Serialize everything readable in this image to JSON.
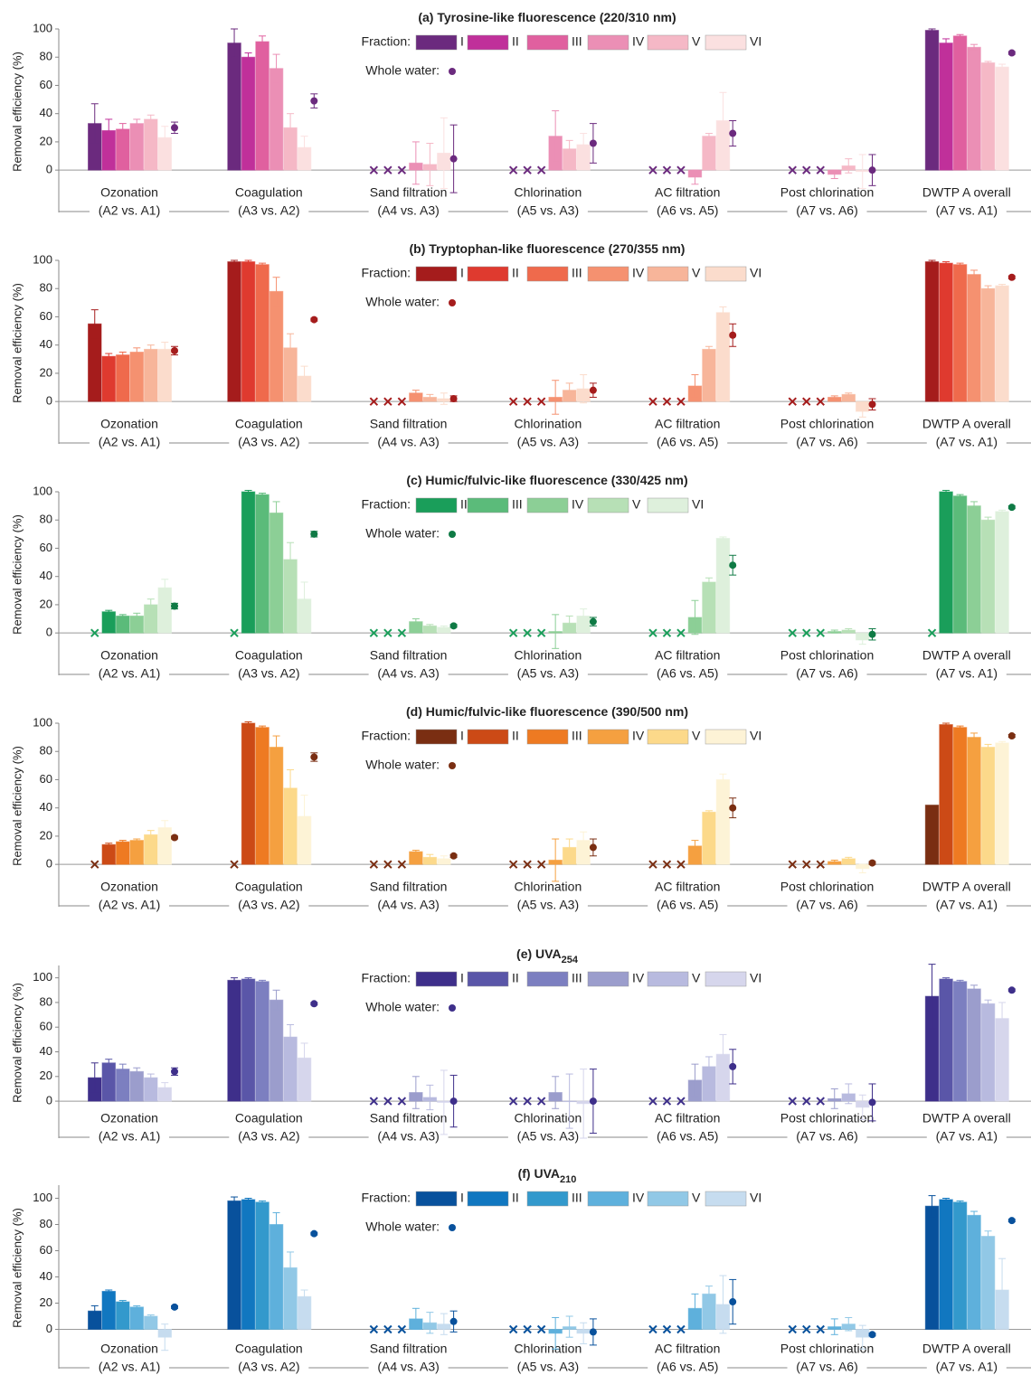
{
  "chart_data": [
    {
      "type": "bar",
      "title": "(a) Tyrosine-like fluorescence (220/310 nm)",
      "y_label": "Removal efficiency (%)",
      "categories": [
        "Ozonation",
        "Coagulation",
        "Sand filtration",
        "Chlorination",
        "AC filtration",
        "Post chlorination",
        "DWTP A overall"
      ],
      "comparisons": [
        "(A2 vs. A1)",
        "(A3 vs. A2)",
        "(A4 vs. A3)",
        "(A5 vs. A3)",
        "(A6 vs. A5)",
        "(A7 vs. A6)",
        "(A7 vs. A1)"
      ],
      "ylim": [
        -30,
        100
      ],
      "yticks": [
        0,
        20,
        40,
        60,
        80,
        100
      ],
      "legend_title": "Fraction:",
      "series": [
        {
          "name": "I",
          "color": "#6b2a7e",
          "values": [
            33,
            90,
            null,
            null,
            null,
            null,
            99
          ],
          "errors": [
            14,
            10,
            null,
            null,
            null,
            null,
            1
          ]
        },
        {
          "name": "II",
          "color": "#c0309a",
          "values": [
            28,
            80,
            null,
            null,
            null,
            null,
            90
          ],
          "errors": [
            8,
            3,
            null,
            null,
            null,
            null,
            3
          ]
        },
        {
          "name": "III",
          "color": "#e0609f",
          "values": [
            29,
            91,
            null,
            null,
            null,
            null,
            95
          ],
          "errors": [
            4,
            4,
            null,
            null,
            null,
            null,
            1
          ]
        },
        {
          "name": "IV",
          "color": "#eb8fb5",
          "values": [
            33,
            72,
            5,
            24,
            -5,
            -3,
            87
          ],
          "errors": [
            3,
            10,
            15,
            18,
            5,
            3,
            2
          ]
        },
        {
          "name": "V",
          "color": "#f5b8c6",
          "values": [
            36,
            30,
            4,
            15,
            24,
            3,
            76
          ],
          "errors": [
            3,
            10,
            15,
            6,
            2,
            5,
            1
          ]
        },
        {
          "name": "VI",
          "color": "#fbe0e0",
          "values": [
            23,
            16,
            12,
            18,
            35,
            -1,
            73
          ],
          "errors": [
            8,
            8,
            25,
            8,
            20,
            12,
            2
          ]
        }
      ],
      "whole_water": {
        "name": "Whole water:",
        "color": "#6b2a7e",
        "values": [
          30,
          49,
          8,
          19,
          26,
          0,
          83
        ],
        "errors": [
          4,
          5,
          24,
          14,
          9,
          11,
          1
        ]
      }
    },
    {
      "type": "bar",
      "title": "(b) Tryptophan-like fluorescence (270/355 nm)",
      "y_label": "Removal efficiency (%)",
      "categories": [
        "Ozonation",
        "Coagulation",
        "Sand filtration",
        "Chlorination",
        "AC filtration",
        "Post chlorination",
        "DWTP A overall"
      ],
      "comparisons": [
        "(A2 vs. A1)",
        "(A3 vs. A2)",
        "(A4 vs. A3)",
        "(A5 vs. A3)",
        "(A6 vs. A5)",
        "(A7 vs. A6)",
        "(A7 vs. A1)"
      ],
      "ylim": [
        -30,
        100
      ],
      "yticks": [
        0,
        20,
        40,
        60,
        80,
        100
      ],
      "legend_title": "Fraction:",
      "series": [
        {
          "name": "I",
          "color": "#a51c1c",
          "values": [
            55,
            99,
            null,
            null,
            null,
            null,
            99
          ],
          "errors": [
            10,
            1,
            null,
            null,
            null,
            null,
            1
          ]
        },
        {
          "name": "II",
          "color": "#df3a2f",
          "values": [
            32,
            99,
            null,
            null,
            null,
            null,
            98
          ],
          "errors": [
            2,
            1,
            null,
            null,
            null,
            null,
            1
          ]
        },
        {
          "name": "III",
          "color": "#ef6a4c",
          "values": [
            33,
            97,
            null,
            null,
            null,
            null,
            97
          ],
          "errors": [
            2,
            1,
            null,
            null,
            null,
            null,
            1
          ]
        },
        {
          "name": "IV",
          "color": "#f59170",
          "values": [
            35,
            78,
            6,
            3,
            11,
            3,
            90
          ],
          "errors": [
            3,
            10,
            2,
            12,
            8,
            1,
            3
          ]
        },
        {
          "name": "V",
          "color": "#f7b59a",
          "values": [
            37,
            38,
            3,
            8,
            37,
            5,
            80
          ],
          "errors": [
            3,
            10,
            2,
            5,
            2,
            1,
            2
          ]
        },
        {
          "name": "VI",
          "color": "#fbdccc",
          "values": [
            37,
            18,
            2,
            9,
            63,
            -7,
            82
          ],
          "errors": [
            5,
            7,
            4,
            10,
            4,
            4,
            1
          ]
        }
      ],
      "whole_water": {
        "name": "Whole water:",
        "color": "#a51c1c",
        "values": [
          36,
          58,
          2,
          8,
          47,
          -2,
          88
        ],
        "errors": [
          3,
          1,
          2,
          5,
          8,
          4,
          1
        ]
      }
    },
    {
      "type": "bar",
      "title": "(c) Humic/fulvic-like fluorescence (330/425 nm)",
      "y_label": "Removal efficiency (%)",
      "categories": [
        "Ozonation",
        "Coagulation",
        "Sand filtration",
        "Chlorination",
        "AC filtration",
        "Post chlorination",
        "DWTP A overall"
      ],
      "comparisons": [
        "(A2 vs. A1)",
        "(A3 vs. A2)",
        "(A4 vs. A3)",
        "(A5 vs. A3)",
        "(A6 vs. A5)",
        "(A7 vs. A6)",
        "(A7 vs. A1)"
      ],
      "ylim": [
        -30,
        100
      ],
      "yticks": [
        0,
        20,
        40,
        60,
        80,
        100
      ],
      "legend_title": "Fraction:",
      "series": [
        {
          "name": "II",
          "color": "#1a9e5a",
          "values": [
            15,
            100,
            null,
            null,
            null,
            null,
            100
          ],
          "errors": [
            1,
            1,
            null,
            null,
            null,
            null,
            1
          ]
        },
        {
          "name": "III",
          "color": "#5bbb7a",
          "values": [
            12,
            98,
            null,
            null,
            null,
            null,
            97
          ],
          "errors": [
            1,
            1,
            null,
            null,
            null,
            null,
            1
          ]
        },
        {
          "name": "IV",
          "color": "#8ccf96",
          "values": [
            12,
            85,
            8,
            1,
            11,
            1,
            90
          ],
          "errors": [
            2,
            8,
            2,
            12,
            12,
            1,
            3
          ]
        },
        {
          "name": "V",
          "color": "#b7e0b6",
          "values": [
            20,
            52,
            5,
            7,
            36,
            2,
            80
          ],
          "errors": [
            4,
            12,
            1,
            5,
            3,
            1,
            2
          ]
        },
        {
          "name": "VI",
          "color": "#def0dc",
          "values": [
            32,
            24,
            4,
            12,
            67,
            -5,
            86
          ],
          "errors": [
            6,
            12,
            1,
            5,
            1,
            3,
            1
          ]
        }
      ],
      "whole_water": {
        "name": "Whole water:",
        "color": "#0f7a45",
        "values": [
          19,
          70,
          5,
          8,
          48,
          -1,
          89
        ],
        "errors": [
          2,
          2,
          1,
          3,
          7,
          4,
          1
        ]
      }
    },
    {
      "type": "bar",
      "title": "(d) Humic/fulvic-like fluorescence (390/500 nm)",
      "y_label": "Removal efficiency (%)",
      "categories": [
        "Ozonation",
        "Coagulation",
        "Sand filtration",
        "Chlorination",
        "AC filtration",
        "Post chlorination",
        "DWTP A overall"
      ],
      "comparisons": [
        "(A2 vs. A1)",
        "(A3 vs. A2)",
        "(A4 vs. A3)",
        "(A5 vs. A3)",
        "(A6 vs. A5)",
        "(A7 vs. A6)",
        "(A7 vs. A1)"
      ],
      "ylim": [
        -30,
        100
      ],
      "yticks": [
        0,
        20,
        40,
        60,
        80,
        100
      ],
      "legend_title": "Fraction:",
      "series": [
        {
          "name": "I",
          "color": "#7a2e12",
          "values": [
            null,
            null,
            null,
            null,
            null,
            null,
            42
          ],
          "errors": [
            null,
            null,
            null,
            null,
            null,
            null,
            null
          ]
        },
        {
          "name": "II",
          "color": "#cc4a16",
          "values": [
            14,
            100,
            null,
            null,
            null,
            null,
            99
          ],
          "errors": [
            1,
            1,
            null,
            null,
            null,
            null,
            1
          ]
        },
        {
          "name": "III",
          "color": "#ee7a22",
          "values": [
            16,
            97,
            null,
            null,
            null,
            null,
            97
          ],
          "errors": [
            1,
            1,
            null,
            null,
            null,
            null,
            1
          ]
        },
        {
          "name": "IV",
          "color": "#f5a040",
          "values": [
            17,
            83,
            9,
            3,
            13,
            2,
            90
          ],
          "errors": [
            1,
            8,
            1,
            15,
            4,
            1,
            3
          ]
        },
        {
          "name": "V",
          "color": "#fcd98a",
          "values": [
            21,
            54,
            5,
            12,
            37,
            4,
            83
          ],
          "errors": [
            3,
            13,
            2,
            6,
            1,
            1,
            2
          ]
        },
        {
          "name": "VI",
          "color": "#fdf3d6",
          "values": [
            26,
            34,
            4,
            17,
            60,
            -3,
            86
          ],
          "errors": [
            5,
            15,
            2,
            6,
            4,
            3,
            1
          ]
        }
      ],
      "whole_water": {
        "name": "Whole water:",
        "color": "#7a2e12",
        "values": [
          19,
          76,
          6,
          12,
          40,
          1,
          91
        ],
        "errors": [
          1,
          3,
          1,
          6,
          7,
          1,
          1
        ]
      }
    },
    {
      "type": "bar",
      "title": "(e) UVA",
      "title_subscript": "254",
      "y_label": "Removal efficiency (%)",
      "categories": [
        "Ozonation",
        "Coagulation",
        "Sand filtration",
        "Chlorination",
        "AC filtration",
        "Post chlorination",
        "DWTP A overall"
      ],
      "comparisons": [
        "(A2 vs. A1)",
        "(A3 vs. A2)",
        "(A4 vs. A3)",
        "(A5 vs. A3)",
        "(A6 vs. A5)",
        "(A7 vs. A6)",
        "(A7 vs. A1)"
      ],
      "ylim": [
        -30,
        110
      ],
      "yticks": [
        0,
        20,
        40,
        60,
        80,
        100
      ],
      "legend_title": "Fraction:",
      "series": [
        {
          "name": "I",
          "color": "#3e2f8a",
          "values": [
            19,
            98,
            null,
            null,
            null,
            null,
            85
          ],
          "errors": [
            12,
            2,
            null,
            null,
            null,
            null,
            26
          ]
        },
        {
          "name": "II",
          "color": "#5a56a8",
          "values": [
            31,
            99,
            null,
            null,
            null,
            null,
            99
          ],
          "errors": [
            3,
            1,
            null,
            null,
            null,
            null,
            1
          ]
        },
        {
          "name": "III",
          "color": "#7c7fc0",
          "values": [
            26,
            97,
            null,
            null,
            null,
            null,
            97
          ],
          "errors": [
            4,
            1,
            null,
            null,
            null,
            null,
            1
          ]
        },
        {
          "name": "IV",
          "color": "#9b9dcc",
          "values": [
            24,
            82,
            7,
            7,
            17,
            2,
            91
          ],
          "errors": [
            3,
            8,
            13,
            13,
            13,
            8,
            3
          ]
        },
        {
          "name": "V",
          "color": "#b8badf",
          "values": [
            19,
            52,
            3,
            0,
            28,
            6,
            79
          ],
          "errors": [
            3,
            10,
            10,
            22,
            8,
            8,
            3
          ]
        },
        {
          "name": "VI",
          "color": "#d6d6ec",
          "values": [
            11,
            35,
            -1,
            -2,
            38,
            -5,
            67
          ],
          "errors": [
            4,
            12,
            26,
            28,
            16,
            10,
            13
          ]
        }
      ],
      "whole_water": {
        "name": "Whole water:",
        "color": "#3e2f8a",
        "values": [
          24,
          79,
          0,
          0,
          28,
          -1,
          90
        ],
        "errors": [
          3,
          1,
          21,
          26,
          14,
          15,
          1
        ]
      }
    },
    {
      "type": "bar",
      "title": "(f) UVA",
      "title_subscript": "210",
      "y_label": "Removal efficiency (%)",
      "categories": [
        "Ozonation",
        "Coagulation",
        "Sand filtration",
        "Chlorination",
        "AC filtration",
        "Post chlorination",
        "DWTP A overall"
      ],
      "comparisons": [
        "(A2 vs. A1)",
        "(A3 vs. A2)",
        "(A4 vs. A3)",
        "(A5 vs. A3)",
        "(A6 vs. A5)",
        "(A7 vs. A6)",
        "(A7 vs. A1)"
      ],
      "ylim": [
        -30,
        110
      ],
      "yticks": [
        0,
        20,
        40,
        60,
        80,
        100
      ],
      "legend_title": "Fraction:",
      "series": [
        {
          "name": "I",
          "color": "#08519c",
          "values": [
            14,
            98,
            null,
            null,
            null,
            null,
            94
          ],
          "errors": [
            4,
            3,
            null,
            null,
            null,
            null,
            8
          ]
        },
        {
          "name": "II",
          "color": "#1177c0",
          "values": [
            29,
            99,
            null,
            null,
            null,
            null,
            99
          ],
          "errors": [
            1,
            1,
            null,
            null,
            null,
            null,
            1
          ]
        },
        {
          "name": "III",
          "color": "#3399cc",
          "values": [
            21,
            97,
            null,
            null,
            null,
            null,
            97
          ],
          "errors": [
            1,
            1,
            null,
            null,
            null,
            null,
            1
          ]
        },
        {
          "name": "IV",
          "color": "#5eb0dc",
          "values": [
            17,
            80,
            8,
            -3,
            16,
            2,
            87
          ],
          "errors": [
            1,
            9,
            8,
            12,
            11,
            6,
            3
          ]
        },
        {
          "name": "V",
          "color": "#91c8e6",
          "values": [
            10,
            47,
            5,
            2,
            27,
            4,
            71
          ],
          "errors": [
            1,
            12,
            8,
            8,
            6,
            5,
            4
          ]
        },
        {
          "name": "VI",
          "color": "#c6dcef",
          "values": [
            -6,
            25,
            4,
            -3,
            19,
            -6,
            30
          ],
          "errors": [
            10,
            5,
            8,
            8,
            22,
            9,
            24
          ]
        }
      ],
      "whole_water": {
        "name": "Whole water:",
        "color": "#08519c",
        "values": [
          17,
          73,
          6,
          -2,
          21,
          -4,
          83
        ],
        "errors": [
          1,
          1,
          8,
          10,
          17,
          1,
          1
        ]
      }
    }
  ]
}
